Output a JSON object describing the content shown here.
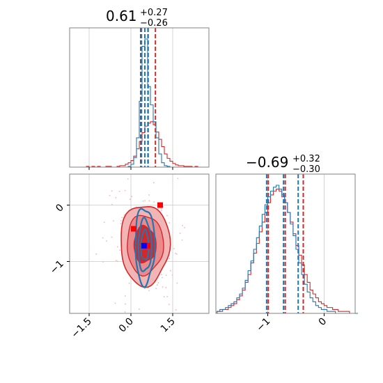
{
  "colors": {
    "red": "#d62728",
    "blue": "#1f77b4",
    "frame": "#808080",
    "grid": "#c8c8c8",
    "red_fill_outer": "#f2b5b6",
    "red_fill_mid": "#ea8a8c",
    "red_fill_inner": "#d62728"
  },
  "panels": {
    "top": {
      "title": {
        "value": "0.61",
        "plus": "+0.27",
        "minus": "−0.26"
      }
    },
    "right": {
      "title": {
        "value": "−0.69",
        "plus": "+0.32",
        "minus": "−0.30"
      }
    }
  },
  "chart_data": [
    {
      "type": "histogram",
      "panel": "top",
      "xlim": [
        -2.2,
        2.8
      ],
      "grid": true,
      "series": [
        {
          "color": "red",
          "bin_start": -2.2,
          "bin_width": 0.1,
          "counts": [
            0,
            0,
            0,
            0,
            0,
            0,
            1,
            0,
            1,
            0,
            1,
            0,
            0,
            1,
            1,
            0,
            0,
            1,
            2,
            2,
            4,
            6,
            9,
            15,
            25,
            35,
            47,
            56,
            60,
            62,
            58,
            48,
            38,
            28,
            18,
            12,
            8,
            5,
            3,
            2,
            2,
            1,
            1,
            1,
            0,
            1,
            0,
            0,
            0,
            0
          ],
          "quantiles": [
            0.35,
            0.61,
            0.88
          ]
        },
        {
          "color": "blue",
          "bin_start": -2.2,
          "bin_width": 0.1,
          "counts": [
            0,
            0,
            0,
            0,
            0,
            0,
            0,
            0,
            0,
            0,
            0,
            0,
            0,
            0,
            0,
            0,
            0,
            0,
            0,
            0,
            0,
            1,
            4,
            13,
            40,
            90,
            165,
            175,
            110,
            85,
            62,
            40,
            18,
            6,
            2,
            1,
            0,
            0,
            0,
            0,
            0,
            0,
            0,
            0,
            0,
            0,
            0,
            0,
            0,
            0
          ],
          "quantiles": [
            0.38,
            0.5,
            0.62
          ]
        }
      ]
    },
    {
      "type": "contour",
      "panel": "corner",
      "xlim": [
        -2.2,
        2.8
      ],
      "ylim": [
        -1.92,
        0.55
      ],
      "grid": true,
      "x_ticks": [
        -1.5,
        0.0,
        1.5
      ],
      "x_tick_labels": [
        "−1.5",
        "0.0",
        "1.5"
      ],
      "y_ticks": [
        -1,
        0
      ],
      "y_tick_labels": [
        "−1",
        "0"
      ],
      "red_center": [
        0.5,
        -0.7
      ],
      "red_sigma": [
        0.42,
        0.34
      ],
      "blue_center": [
        0.5,
        -0.72
      ],
      "blue_sigma": [
        0.17,
        0.33
      ],
      "markers_red": [
        [
          0.1,
          -0.42
        ],
        [
          0.6,
          -0.72
        ],
        [
          1.05,
          0.0
        ]
      ],
      "markers_blue": [
        [
          0.47,
          -0.72
        ]
      ]
    },
    {
      "type": "histogram",
      "panel": "right",
      "xlim": [
        -1.92,
        0.55
      ],
      "x_ticks": [
        -1,
        0
      ],
      "x_tick_labels": [
        "−1",
        "0"
      ],
      "grid": true,
      "series": [
        {
          "color": "red",
          "bin_start": -1.9,
          "bin_width": 0.05,
          "counts": [
            1,
            1,
            2,
            2,
            3,
            4,
            5,
            7,
            9,
            12,
            16,
            20,
            26,
            31,
            36,
            42,
            47,
            52,
            57,
            61,
            63,
            64,
            63,
            60,
            57,
            52,
            47,
            41,
            35,
            30,
            25,
            20,
            16,
            12,
            10,
            8,
            6,
            5,
            4,
            3,
            3,
            2,
            2,
            1,
            1,
            1,
            1,
            0,
            0,
            0
          ],
          "quantiles": [
            -0.99,
            -0.69,
            -0.37
          ]
        },
        {
          "color": "blue",
          "bin_start": -1.9,
          "bin_width": 0.05,
          "counts": [
            1,
            2,
            2,
            3,
            4,
            5,
            6,
            8,
            10,
            13,
            17,
            22,
            27,
            33,
            39,
            45,
            51,
            56,
            60,
            63,
            65,
            66,
            64,
            61,
            57,
            52,
            46,
            40,
            33,
            26,
            20,
            15,
            11,
            8,
            6,
            4,
            3,
            2,
            2,
            1,
            1,
            1,
            0,
            0,
            0,
            0,
            0,
            0,
            0,
            0
          ],
          "quantiles": [
            -1.02,
            -0.72,
            -0.46
          ]
        }
      ]
    }
  ]
}
